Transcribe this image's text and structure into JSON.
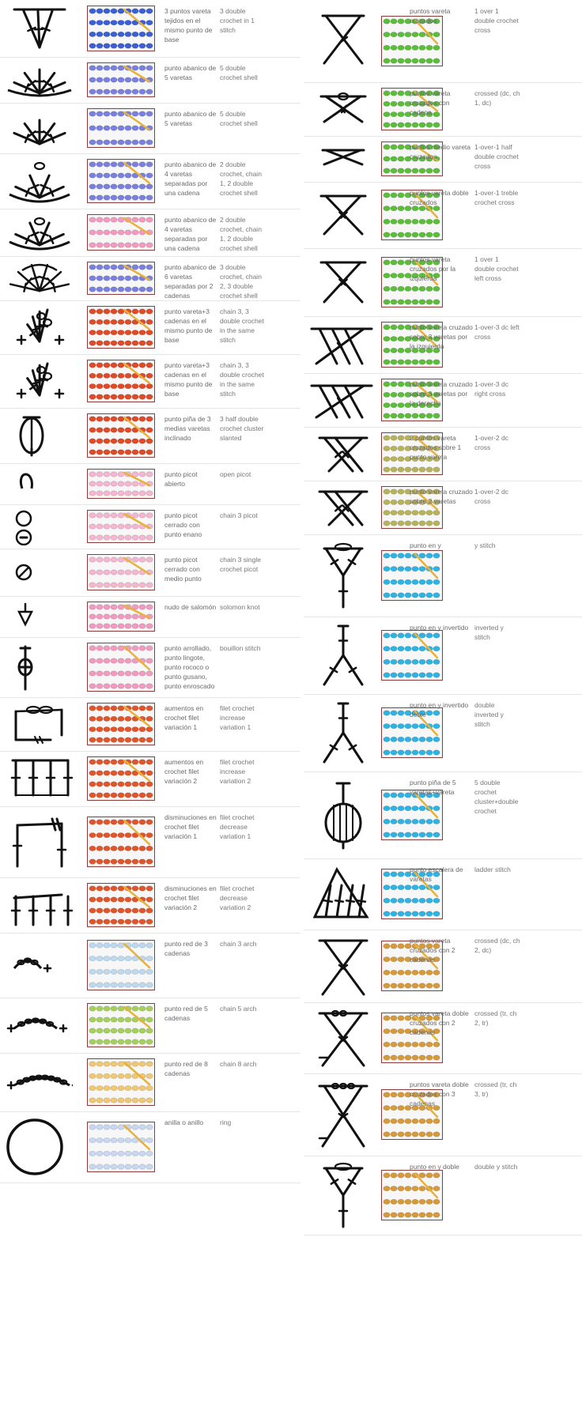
{
  "left": [
    {
      "es": "3 puntos vareta tejidos en el mismo punto de base",
      "en": "3 double crochet in 1 stitch",
      "sym": "cluster3",
      "color": "#3b5fd4",
      "yarn": "blue"
    },
    {
      "es": "punto abanico de 5 varetas",
      "en": "5 double crochet shell",
      "sym": "fan5",
      "color": "#7a80df",
      "yarn": "purple"
    },
    {
      "es": "punto abanico de 5 varetas",
      "en": "5 double crochet shell",
      "sym": "shell5",
      "color": "#7a80df",
      "yarn": "purple"
    },
    {
      "es": "punto abanico de 4 varetas separadas por una cadena",
      "en": "2 double crochet, chain 1, 2 double crochet shell",
      "sym": "fan4",
      "color": "#7a80df",
      "yarn": "purple"
    },
    {
      "es": "punto abanico de 4 varetas separadas por una cadena",
      "en": "2 double crochet, chain 1, 2 double crochet shell",
      "sym": "fan4b",
      "color": "#f39ac0",
      "yarn": "pink"
    },
    {
      "es": "punto abanico de 6 varetas separadas por 2 cadenas",
      "en": "3 double crochet, chain 2, 3 double crochet shell",
      "sym": "fan6",
      "color": "#7a80df",
      "yarn": "purple"
    },
    {
      "es": "punto vareta+3 cadenas en el mismo punto de base",
      "en": "chain 3, 3 double crochet in the same stitch",
      "sym": "half",
      "color": "#e04a26",
      "yarn": "yellow"
    },
    {
      "es": "punto vareta+3 cadenas en el mismo punto de base",
      "en": "chain 3, 3 double crochet in the same stitch",
      "sym": "half",
      "color": "#e04a26",
      "yarn": "yellow"
    },
    {
      "es": "punto piña de 3 medias varetas inclinado",
      "en": "3 half double crochet cluster slanted",
      "sym": "puff",
      "color": "#e04a26",
      "yarn": "yellow"
    },
    {
      "es": "punto picot abierto",
      "en": "open picot",
      "sym": "picot",
      "color": "#f6b6d0",
      "yarn": "pink"
    },
    {
      "es": "punto picot cerrado con punto enano",
      "en": "chain 3 picot",
      "sym": "picot2",
      "color": "#f6b6d0",
      "yarn": "pink"
    },
    {
      "es": "punto picot cerrado con medio punto",
      "en": "chain 3 single crochet picot",
      "sym": "picot3",
      "color": "#f6b6d0",
      "yarn": "pink"
    },
    {
      "es": "nudo de salomón",
      "en": "solomon knot",
      "sym": "knot",
      "color": "#f39ac0",
      "yarn": "pink"
    },
    {
      "es": "punto arrollado, punto lingote, punto rococo o punto gusano, punto enroscado",
      "en": "bouillon stitch",
      "sym": "bouillon",
      "color": "#f39ac0",
      "yarn": "pink"
    },
    {
      "es": "aumentos en crochet filet variación 1",
      "en": "filet crochet increase variation 1",
      "sym": "filet1",
      "color": "#e2552a",
      "yarn": "orange"
    },
    {
      "es": "aumentos en crochet filet variación 2",
      "en": "filet crochet increase variation 2",
      "sym": "filet2",
      "color": "#e2552a",
      "yarn": "orange"
    },
    {
      "es": "disminuciones en crochet filet variación 1",
      "en": "filet crochet decrease variation 1",
      "sym": "filet3",
      "color": "#e2552a",
      "yarn": "orange"
    },
    {
      "es": "disminuciones en crochet filet variación 2",
      "en": "filet crochet decrease variation 2",
      "sym": "filet4",
      "color": "#e2552a",
      "yarn": "orange"
    },
    {
      "es": "punto red de 3 cadenas",
      "en": "chain 3 arch",
      "sym": "arch3",
      "color": "#bcd9ef",
      "yarn": "lightblue"
    },
    {
      "es": "punto red de 5 cadenas",
      "en": "chain 5 arch",
      "sym": "arch5",
      "color": "#a6d05c",
      "yarn": "green"
    },
    {
      "es": "punto red de 8 cadenas",
      "en": "chain 8 arch",
      "sym": "arch8",
      "color": "#f0c872",
      "yarn": "yellow"
    },
    {
      "es": "anilla o anillo",
      "en": "ring",
      "sym": "ring",
      "color": "#c8d8f2",
      "yarn": "lightblue"
    }
  ],
  "right": [
    {
      "es": "puntos vareta cruzados",
      "en": "1 over 1 double crochet cross",
      "sym": "cross1",
      "color": "#5bbd3a",
      "yarn": "green"
    },
    {
      "es": "puntos vareta cruzados con cadena",
      "en": "crossed (dc, ch 1, dc)",
      "sym": "cross2",
      "color": "#5bbd3a",
      "yarn": "green"
    },
    {
      "es": "puntos medio vareta cruzados",
      "en": "1-over-1 half double crochet cross",
      "sym": "cross3",
      "color": "#5bbd3a",
      "yarn": "green"
    },
    {
      "es": "puntos vareta doble cruzados",
      "en": "1-over-1 treble crochet cross",
      "sym": "cross4",
      "color": "#5bbd3a",
      "yarn": "green"
    },
    {
      "es": "puntos vareta cruzados por la izquierda",
      "en": "1 over 1 double crochet left cross",
      "sym": "cross5",
      "color": "#5bbd3a",
      "yarn": "green"
    },
    {
      "es": "punto vareta cruzado sobre 3 varetas por la izquierda",
      "en": "1-over-3 dc left cross",
      "sym": "cross6",
      "color": "#5bbd3a",
      "yarn": "green"
    },
    {
      "es": "punto vareta cruzado sobre 3 varetas por la derecha",
      "en": "1-over-3 dc right cross",
      "sym": "cross7",
      "color": "#5bbd3a",
      "yarn": "green"
    },
    {
      "es": "2 puntos vareta cruzados sobre 1 punto vareta",
      "en": "1-over-2 dc cross",
      "sym": "cross8",
      "color": "#b7b25c",
      "yarn": "olive"
    },
    {
      "es": "punto vareta cruzado sobre 2 varetas",
      "en": "1-over-2 dc cross",
      "sym": "cross9",
      "color": "#b7b25c",
      "yarn": "olive"
    },
    {
      "es": "punto en y",
      "en": "y stitch",
      "sym": "ystitch",
      "color": "#2fb3e2",
      "yarn": "cyan"
    },
    {
      "es": "punto en y invertido",
      "en": "inverted y stitch",
      "sym": "iy",
      "color": "#2fb3e2",
      "yarn": "cyan"
    },
    {
      "es": "punto en y invertido doble",
      "en": "double inverted y stitch",
      "sym": "iy2",
      "color": "#2fb3e2",
      "yarn": "cyan"
    },
    {
      "es": "punto piña de 5 varetas+vareta",
      "en": "5 double crochet cluster+double crochet",
      "sym": "bobble",
      "color": "#2fb3e2",
      "yarn": "cyan"
    },
    {
      "es": "punto escalera de varetas",
      "en": "ladder stitch",
      "sym": "ladder",
      "color": "#2fb3e2",
      "yarn": "cyan"
    },
    {
      "es": "puntos vareta cruzados con 2 cadenas",
      "en": "crossed (dc, ch 2, dc)",
      "sym": "xc2",
      "color": "#d69a3a",
      "yarn": "ochre"
    },
    {
      "es": "puntos vareta doble cruzados con 2 cadenas",
      "en": "crossed (tr, ch 2, tr)",
      "sym": "xc3",
      "color": "#d69a3a",
      "yarn": "ochre"
    },
    {
      "es": "puntos vareta doble cruzados con 3 cadenas",
      "en": "crossed (tr, ch 3, tr)",
      "sym": "xc4",
      "color": "#d69a3a",
      "yarn": "ochre"
    },
    {
      "es": "punto en y doble",
      "en": "double y stitch",
      "sym": "ydouble",
      "color": "#d69a3a",
      "yarn": "ochre"
    }
  ]
}
